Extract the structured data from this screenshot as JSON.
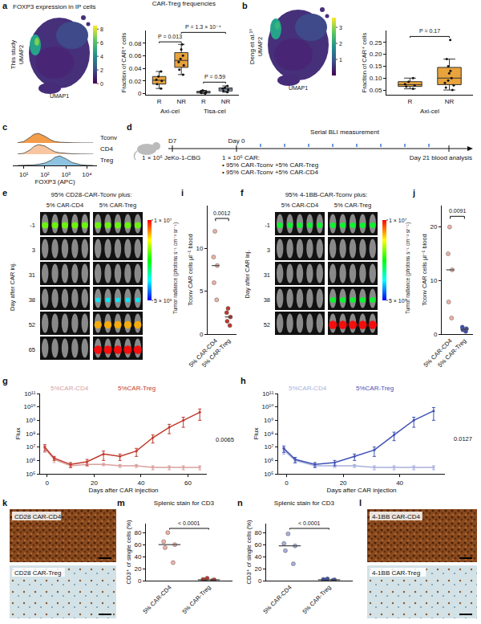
{
  "chart_data": [
    {
      "panel_label": "a",
      "type": "umap",
      "title": "FOXP3 expression in IP cells",
      "side_label": "This study",
      "x_label": "UMAP1",
      "y_label": "UMAP2",
      "colorbar_range": [
        0,
        8.5
      ],
      "colorbar_ticks": [
        0,
        2,
        4,
        6,
        8
      ]
    },
    {
      "type": "box",
      "title": "CAR-Treg frequencies",
      "y_label": "Fraction of CAR⁺ cells",
      "categories": [
        "R",
        "NR",
        "R",
        "NR"
      ],
      "group_labels": [
        "Axi-cel",
        "Axi-cel",
        "Tisa-cel",
        "Tisa-cel"
      ],
      "values": [
        [
          0.008,
          0.015,
          0.02,
          0.022,
          0.027,
          0.035
        ],
        [
          0.03,
          0.038,
          0.045,
          0.05,
          0.055,
          0.06,
          0.07,
          0.078
        ],
        [
          0,
          0.001,
          0.002,
          0.003,
          0.005
        ],
        [
          0.002,
          0.004,
          0.006,
          0.008,
          0.009,
          0.012
        ]
      ],
      "colors": [
        "#e8a33d",
        "#e8a33d",
        "#a9b8d8",
        "#a9b8d8"
      ],
      "ylim": [
        -0.002,
        0.1
      ],
      "yticks": [
        0,
        0.02,
        0.04,
        0.06,
        0.08
      ],
      "comparisons": [
        {
          "from": 0,
          "to": 1,
          "y": 0.082,
          "label": "P = 0.013"
        },
        {
          "from": 1,
          "to": 3,
          "y": 0.097,
          "label": "P = 1.3 × 10⁻⁴"
        },
        {
          "from": 2,
          "to": 3,
          "y": 0.018,
          "label": "P = 0.59"
        }
      ]
    },
    {
      "panel_label": "b",
      "type": "umap",
      "side_label": "Deng et al.¹⁰",
      "x_label": "UMAP1",
      "y_label": "UMAP2",
      "colorbar_range": [
        0,
        3.6
      ],
      "colorbar_ticks": [
        1,
        2,
        3
      ]
    },
    {
      "type": "box",
      "y_label": "Fraction of CAR⁺ cells",
      "categories": [
        "R",
        "NR"
      ],
      "group_labels": [
        "Axi-cel",
        "Axi-cel"
      ],
      "values": [
        [
          0.055,
          0.065,
          0.07,
          0.075,
          0.085,
          0.1
        ],
        [
          0.05,
          0.06,
          0.07,
          0.08,
          0.09,
          0.1,
          0.12,
          0.13,
          0.15,
          0.18,
          0.26
        ]
      ],
      "colors": [
        "#e8a33d",
        "#e8a33d"
      ],
      "ylim": [
        0.03,
        0.3
      ],
      "yticks": [
        0.05,
        {
          "value": 0.1,
          "label": "0.10"
        },
        0.15,
        {
          "value": 0.2,
          "label": "0.20"
        },
        0.25
      ],
      "comparisons": [
        {
          "from": 0,
          "to": 1,
          "y": 0.275,
          "label": "P = 0.17"
        }
      ]
    },
    {
      "panel_label": "c",
      "type": "density",
      "x_label": "FOXP3 (APC)",
      "log": "x",
      "xlim": [
        3,
        30000
      ],
      "xticks": [
        {
          "value": 10,
          "label": "10¹"
        },
        {
          "value": 100,
          "label": "10²"
        },
        {
          "value": 1000,
          "label": "10³"
        },
        {
          "value": 10000,
          "label": "10⁴"
        }
      ],
      "ylim": [
        0,
        110
      ],
      "tick_labels": "x",
      "x": [
        5,
        10,
        20,
        30,
        50,
        100,
        200,
        300,
        500,
        1000,
        2000,
        5000,
        10000,
        20000
      ],
      "series": [
        {
          "name": "Tconv",
          "color": "#f39c4a",
          "values": [
            2,
            15,
            60,
            90,
            100,
            70,
            30,
            15,
            8,
            4,
            2,
            1,
            0,
            0
          ]
        },
        {
          "name": "CD4",
          "color": "#f7c6a0",
          "values": [
            1,
            10,
            45,
            80,
            100,
            85,
            45,
            25,
            15,
            8,
            4,
            2,
            1,
            0
          ]
        },
        {
          "name": "Treg",
          "color": "#8cc3e0",
          "values": [
            0,
            1,
            3,
            6,
            12,
            25,
            55,
            85,
            100,
            70,
            30,
            8,
            2,
            0
          ]
        }
      ]
    },
    {
      "panel_label": "d",
      "type": "schematic",
      "start": {
        "label": "D7",
        "text": [
          "1 × 10⁶ JeKo-1-CBG"
        ]
      },
      "injection": {
        "label": "Day 0",
        "text": [
          "1 × 10⁶ CAR:",
          "• 95% CAR-Tconv +5% CAR-Treg",
          "• 95% CAR-Tconv +5% CAR-CD4"
        ]
      },
      "measurement": "Serial BLI measurement",
      "end": "Day 21 blood analysis"
    },
    {
      "panel_label": "e",
      "type": "image_grid",
      "title": "95% CD28-CAR-Tconv plus:",
      "columns": [
        "5% CAR-CD4",
        "5% CAR-Treg"
      ],
      "row_labels": [
        -1,
        3,
        31,
        38,
        52,
        65
      ],
      "row_axis_label": "Day after CAR inj.",
      "mice_per_panel": 5,
      "radiance": [
        [
          3000000.0,
          500000.0,
          500000.0,
          500000.0,
          500000.0,
          500000.0
        ],
        [
          3000000.0,
          500000.0,
          500000.0,
          1000000.0,
          6000000.0,
          10000000.0
        ]
      ],
      "colorbar_title": "Tumor radiance (photons s⁻¹ cm⁻² sr⁻¹)",
      "colorbar_range": [
        500000.0,
        10000000.0
      ],
      "colorbar_ticks": [
        {
          "value": 10000000.0,
          "label": "1 × 10⁷"
        },
        {
          "value": 500000.0,
          "label": "5 × 10⁵"
        }
      ]
    },
    {
      "panel_label": "i",
      "type": "dot",
      "categories": [
        "5% CAR-CD4",
        "5% CAR-Treg"
      ],
      "y_label": "Tconv CAR cells µl⁻¹ blood",
      "values": [
        [
          4,
          6,
          8,
          9,
          12
        ],
        [
          1,
          1.5,
          2,
          2.5,
          3
        ]
      ],
      "medians": [
        8,
        2
      ],
      "colors": [
        "#f0b3a6",
        "#c0392b"
      ],
      "ylim": [
        0,
        15
      ],
      "yticks": [
        0,
        5,
        10
      ],
      "comparison": {
        "label": "0.0012",
        "y": 13.5
      }
    },
    {
      "panel_label": "f",
      "type": "image_grid",
      "title": "95% 4-1BB-CAR-Tconv plus:",
      "columns": [
        "5% CAR-CD4",
        "5% CAR-Treg"
      ],
      "row_labels": [
        -1,
        3,
        31,
        38,
        52
      ],
      "row_axis_label": "Day after CAR inj.",
      "mice_per_panel": 5,
      "radiance": [
        [
          2000000.0,
          500000.0,
          500000.0,
          500000.0,
          500000.0
        ],
        [
          2000000.0,
          500000.0,
          500000.0,
          2000000.0,
          10000000.0
        ]
      ],
      "colorbar_title": "Tumor radiance (photons s⁻¹ cm⁻² sr⁻¹)",
      "colorbar_range": [
        500000.0,
        10000000.0
      ],
      "colorbar_ticks": [
        {
          "value": 10000000.0,
          "label": "1 × 10⁷"
        },
        {
          "value": 500000.0,
          "label": "5 × 10⁵"
        }
      ]
    },
    {
      "panel_label": "j",
      "type": "dot",
      "categories": [
        "5% CAR-CD4",
        "5% CAR-Treg"
      ],
      "y_label": "Tconv CAR cells µl⁻¹ blood",
      "values": [
        [
          3,
          6,
          12,
          15,
          20
        ],
        [
          0.5,
          0.8,
          1,
          1.3
        ]
      ],
      "medians": [
        12,
        0.9
      ],
      "colors": [
        "#f0b3a6",
        "#3f51b5"
      ],
      "ylim": [
        0,
        24
      ],
      "yticks": [
        0,
        10,
        20
      ],
      "comparison": {
        "label": "0.0091",
        "y": 22
      }
    },
    {
      "panel_label": "g",
      "type": "line",
      "log": "y",
      "x_label": "Days after CAR injection",
      "y_label": "Flux",
      "xlim": [
        -3,
        68
      ],
      "xticks": [
        0,
        20,
        40,
        60
      ],
      "ylim": [
        100000.0,
        100000000000.0
      ],
      "yticks": [
        {
          "value": 100000.0,
          "label": "10⁵"
        },
        {
          "value": 1000000.0,
          "label": "10⁶"
        },
        {
          "value": 10000000.0,
          "label": "10⁷"
        },
        {
          "value": 100000000.0,
          "label": "10⁸"
        },
        {
          "value": 1000000000.0,
          "label": "10⁹"
        },
        {
          "value": 10000000000.0,
          "label": "10¹⁰"
        },
        {
          "value": 100000000000.0,
          "label": "10¹¹"
        }
      ],
      "x": [
        -1,
        3,
        10,
        17,
        24,
        31,
        38,
        45,
        52,
        58,
        65
      ],
      "series": [
        {
          "name": "5%CAR-CD4",
          "color": "#d9a0a0",
          "values": [
            8000000.0,
            1200000.0,
            400000.0,
            500000.0,
            500000.0,
            400000.0,
            400000.0,
            300000.0,
            300000.0,
            300000.0,
            300000.0
          ],
          "error": [
            4000000.0,
            500000.0,
            100000.0,
            100000.0,
            100000.0,
            100000.0,
            100000.0,
            100000.0,
            100000.0,
            100000.0,
            100000.0
          ]
        },
        {
          "name": "5%CAR-Treg",
          "color": "#c0392b",
          "values": [
            10000000.0,
            1500000.0,
            500000.0,
            800000.0,
            3000000.0,
            2000000.0,
            5000000.0,
            50000000.0,
            300000000.0,
            1000000000.0,
            4000000000.0
          ],
          "error": [
            5000000.0,
            500000.0,
            200000.0,
            400000.0,
            2000000.0,
            1000000.0,
            3000000.0,
            30000000.0,
            200000000.0,
            700000000.0,
            3000000000.0
          ]
        }
      ],
      "comparison": {
        "label": "0.0065"
      }
    },
    {
      "panel_label": "h",
      "type": "line",
      "log": "y",
      "x_label": "Days after CAR injection",
      "y_label": "Flux",
      "xlim": [
        -3,
        56
      ],
      "xticks": [
        0,
        20,
        40
      ],
      "ylim": [
        100000.0,
        100000000000.0
      ],
      "yticks": [
        {
          "value": 100000.0,
          "label": "10⁵"
        },
        {
          "value": 1000000.0,
          "label": "10⁶"
        },
        {
          "value": 10000000.0,
          "label": "10⁷"
        },
        {
          "value": 100000000.0,
          "label": "10⁸"
        },
        {
          "value": 1000000000.0,
          "label": "10⁹"
        },
        {
          "value": 10000000000.0,
          "label": "10¹⁰"
        },
        {
          "value": 100000000000.0,
          "label": "10¹¹"
        }
      ],
      "x": [
        -1,
        3,
        10,
        17,
        24,
        31,
        38,
        45,
        52
      ],
      "series": [
        {
          "name": "5%CAR-CD4",
          "color": "#a9b0dc",
          "values": [
            6000000.0,
            1000000.0,
            400000.0,
            400000.0,
            400000.0,
            300000.0,
            300000.0,
            300000.0,
            300000.0
          ],
          "error": [
            3000000.0,
            400000.0,
            100000.0,
            100000.0,
            100000.0,
            100000.0,
            100000.0,
            100000.0,
            100000.0
          ]
        },
        {
          "name": "5%CAR-Treg",
          "color": "#3f51b5",
          "values": [
            8000000.0,
            1200000.0,
            500000.0,
            700000.0,
            2000000.0,
            6000000.0,
            80000000.0,
            1000000000.0,
            5000000000.0
          ],
          "error": [
            4000000.0,
            500000.0,
            200000.0,
            300000.0,
            1000000.0,
            4000000.0,
            50000000.0,
            700000000.0,
            4000000000.0
          ]
        }
      ],
      "comparison": {
        "label": "0.0127"
      }
    },
    {
      "panel_label": "k",
      "type": "image_stack",
      "images": [
        "CD28 CAR-CD4",
        "CD28 CAR-Treg"
      ]
    },
    {
      "panel_label": "m",
      "type": "dot",
      "title": "Splenic stain for CD3",
      "categories": [
        "5% CAR-CD4",
        "5% CAR-Treg"
      ],
      "y_label": "CD3⁺ of single cells (%)",
      "values": [
        [
          30,
          55,
          60,
          65,
          80
        ],
        [
          0.5,
          1,
          1.5,
          2,
          4
        ]
      ],
      "medians": [
        60,
        1.5
      ],
      "colors": [
        "#f0b3a6",
        "#c0392b"
      ],
      "ylim": [
        0,
        95
      ],
      "yticks": [
        0,
        20,
        40,
        60,
        80
      ],
      "comparison": {
        "label": "< 0.0001",
        "y": 87
      }
    },
    {
      "panel_label": "n",
      "type": "dot",
      "title": "Splenic stain for CD3",
      "categories": [
        "5% CAR-CD4",
        "5% CAR-Treg"
      ],
      "y_label": "CD3⁺ of single cells (%)",
      "values": [
        [
          28,
          50,
          58,
          62,
          78
        ],
        [
          0.5,
          1,
          1.5,
          2,
          3
        ]
      ],
      "medians": [
        58,
        1.5
      ],
      "colors": [
        "#a9b0dc",
        "#3f51b5"
      ],
      "ylim": [
        0,
        95
      ],
      "yticks": [
        0,
        20,
        40,
        60,
        80
      ],
      "comparison": {
        "label": "< 0.0001",
        "y": 87
      }
    },
    {
      "panel_label": "l",
      "type": "image_stack",
      "images": [
        "4-1BB CAR-CD4",
        "4-1BB CAR-Treg"
      ]
    }
  ]
}
